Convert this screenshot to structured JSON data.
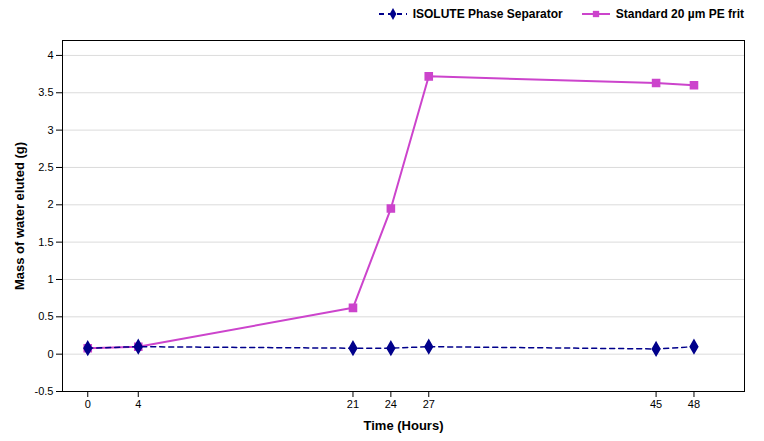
{
  "chart_data": {
    "type": "line",
    "x": [
      0,
      4,
      21,
      24,
      27,
      45,
      48
    ],
    "series": [
      {
        "name": "ISOLUTE Phase Separator",
        "color": "#00008B",
        "values": [
          0.08,
          0.1,
          0.08,
          0.08,
          0.1,
          0.07,
          0.1
        ],
        "marker": "diamond",
        "line_style": "dashed"
      },
      {
        "name": "Standard 20 µm PE frit",
        "color": "#CC44CC",
        "values": [
          0.08,
          0.1,
          0.62,
          1.95,
          3.72,
          3.63,
          3.6
        ],
        "marker": "square",
        "line_style": "solid"
      }
    ],
    "xlabel": "Time (Hours)",
    "ylabel": "Mass of water eluted (g)",
    "xlim": [
      -2,
      52
    ],
    "ylim": [
      -0.5,
      4.2
    ],
    "xticks": [
      0,
      4,
      21,
      24,
      27,
      45,
      48
    ],
    "yticks": [
      -0.5,
      0,
      0.5,
      1,
      1.5,
      2,
      2.5,
      3,
      3.5,
      4
    ],
    "grid": true,
    "legend": "upper right"
  }
}
